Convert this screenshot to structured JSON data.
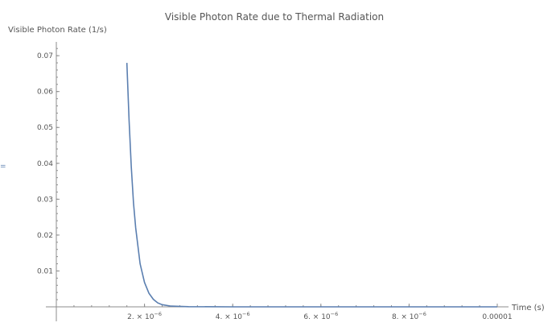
{
  "chart_data": {
    "type": "line",
    "title": "Visible Photon Rate due to Thermal Radiation",
    "xlabel": "Time (s)",
    "ylabel": "Visible Photon Rate (1/s)",
    "xlim": [
      0,
      1e-05
    ],
    "ylim": [
      0,
      0.0725
    ],
    "x_ticks": [
      {
        "value": 2e-06,
        "mantissa": "2. × 10",
        "exponent": "−6"
      },
      {
        "value": 4e-06,
        "mantissa": "4. × 10",
        "exponent": "−6"
      },
      {
        "value": 6e-06,
        "mantissa": "6. × 10",
        "exponent": "−6"
      },
      {
        "value": 8e-06,
        "mantissa": "8. × 10",
        "exponent": "−6"
      },
      {
        "value": 1e-05,
        "mantissa": "0.00001",
        "exponent": ""
      }
    ],
    "y_ticks": [
      {
        "value": 0.01,
        "label": "0.01"
      },
      {
        "value": 0.02,
        "label": "0.02"
      },
      {
        "value": 0.03,
        "label": "0.03"
      },
      {
        "value": 0.04,
        "label": "0.04"
      },
      {
        "value": 0.05,
        "label": "0.05"
      },
      {
        "value": 0.06,
        "label": "0.06"
      },
      {
        "value": 0.07,
        "label": "0.07"
      }
    ],
    "series": [
      {
        "color": "#5b7fb0",
        "x": [
          1.6e-06,
          1.65e-06,
          1.7e-06,
          1.75e-06,
          1.8e-06,
          1.9e-06,
          2e-06,
          2.1e-06,
          2.2e-06,
          2.3e-06,
          2.4e-06,
          2.6e-06,
          3e-06,
          4e-06,
          6e-06,
          8e-06,
          1e-05
        ],
        "y": [
          0.068,
          0.052,
          0.039,
          0.029,
          0.022,
          0.012,
          0.0068,
          0.0038,
          0.0021,
          0.0011,
          0.0006,
          0.0002,
          5e-05,
          0.0,
          0.0,
          0.0,
          0.0
        ]
      }
    ],
    "grid": false,
    "legend": "none"
  },
  "stray_mark": "="
}
